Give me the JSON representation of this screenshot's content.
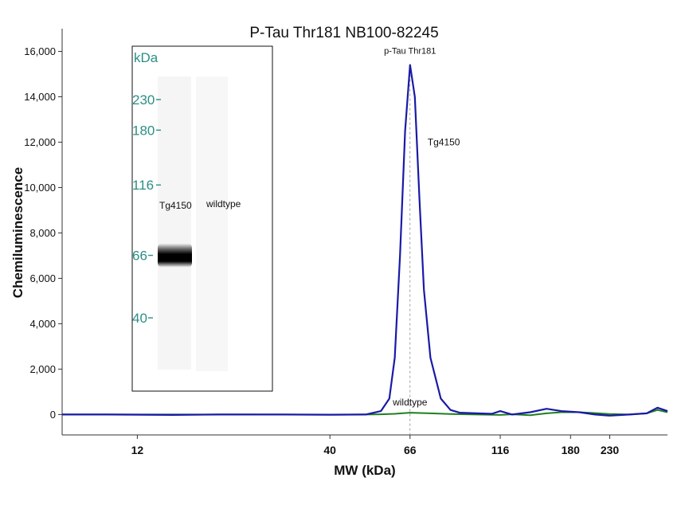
{
  "chart_data": {
    "type": "line",
    "title": "P-Tau Thr181  NB100-82245",
    "xlabel": "MW (kDa)",
    "ylabel": "Chemiluminescence",
    "x_scale": "log",
    "xlim": [
      7.5,
      330
    ],
    "ylim": [
      -900,
      17000
    ],
    "x_ticks": [
      12,
      40,
      66,
      116,
      180,
      230
    ],
    "x_tick_labels": [
      "12",
      "40",
      "66",
      "116",
      "180",
      "230"
    ],
    "y_ticks": [
      0,
      2000,
      4000,
      6000,
      8000,
      10000,
      12000,
      14000,
      16000
    ],
    "y_tick_labels": [
      "0",
      "2,000",
      "4,000",
      "6,000",
      "8,000",
      "10,000",
      "12,000",
      "14,000",
      "16,000"
    ],
    "series": [
      {
        "name": "Tg4150",
        "color": "#1a1aa6",
        "x": [
          7.5,
          10,
          15,
          20,
          30,
          40,
          50,
          55,
          58,
          60,
          62,
          64,
          66,
          68,
          70,
          72,
          75,
          80,
          85,
          90,
          100,
          110,
          116,
          125,
          140,
          155,
          170,
          190,
          210,
          230,
          260,
          290,
          310,
          330
        ],
        "y": [
          0,
          0,
          -20,
          0,
          0,
          -10,
          0,
          150,
          700,
          2500,
          7000,
          12500,
          15400,
          14000,
          9500,
          5500,
          2500,
          700,
          200,
          80,
          50,
          30,
          150,
          0,
          100,
          250,
          150,
          100,
          0,
          -50,
          0,
          50,
          300,
          150
        ]
      },
      {
        "name": "wildtype",
        "color": "#1f7f1f",
        "x": [
          7.5,
          20,
          40,
          50,
          55,
          60,
          66,
          75,
          85,
          100,
          116,
          125,
          140,
          155,
          170,
          190,
          210,
          230,
          260,
          290,
          310,
          330
        ],
        "y": [
          0,
          0,
          -10,
          0,
          10,
          30,
          80,
          50,
          20,
          0,
          -20,
          10,
          -30,
          50,
          100,
          100,
          60,
          20,
          0,
          50,
          200,
          100
        ]
      }
    ],
    "annotations": {
      "peak_label": "p-Tau Thr181",
      "peak_x": 66,
      "tg_label": "Tg4150",
      "wt_label": "wildtype"
    },
    "legend": "none",
    "grid": false
  },
  "inset": {
    "mw_unit": "kDa",
    "markers": [
      {
        "label": "230",
        "mw": 230
      },
      {
        "label": "180",
        "mw": 180
      },
      {
        "label": "116",
        "mw": 116
      },
      {
        "label": "66",
        "mw": 66
      },
      {
        "label": "40",
        "mw": 40
      }
    ],
    "lanes": [
      "Tg4150",
      "wildtype"
    ],
    "band": {
      "lane": "Tg4150",
      "mw": 66
    },
    "mw_color": "#2b8f86"
  }
}
